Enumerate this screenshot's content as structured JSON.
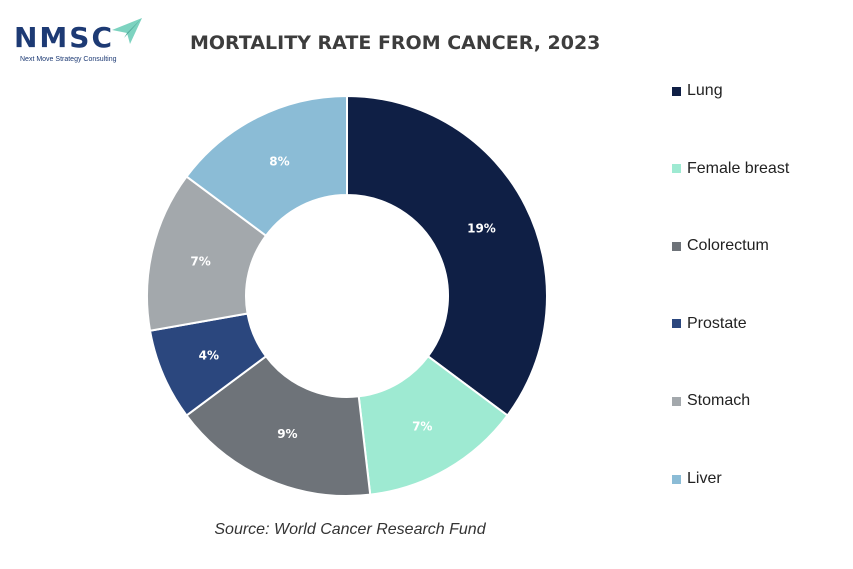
{
  "logo": {
    "text": "NMSC",
    "tagline": "Next Move Strategy Consulting",
    "arrow_color": "#7dd3c0"
  },
  "chart_data": {
    "type": "pie",
    "title": "MORTALITY RATE FROM CANCER, 2023",
    "donut": true,
    "legend_position": "right",
    "categories": [
      "Lung",
      "Female breast",
      "Colorectum",
      "Prostate",
      "Stomach",
      "Liver"
    ],
    "values": [
      19,
      7,
      9,
      4,
      7,
      8
    ],
    "labels": [
      "19%",
      "7%",
      "9%",
      "4%",
      "7%",
      "8%"
    ],
    "colors": [
      "#0f1f45",
      "#9eead2",
      "#6e7379",
      "#2b477e",
      "#a3a8ac",
      "#8bbcd6"
    ],
    "label_colors": [
      "#ffffff",
      "#ffffff",
      "#ffffff",
      "#ffffff",
      "#ffffff",
      "#ffffff"
    ]
  },
  "source": "Source: World Cancer Research Fund"
}
